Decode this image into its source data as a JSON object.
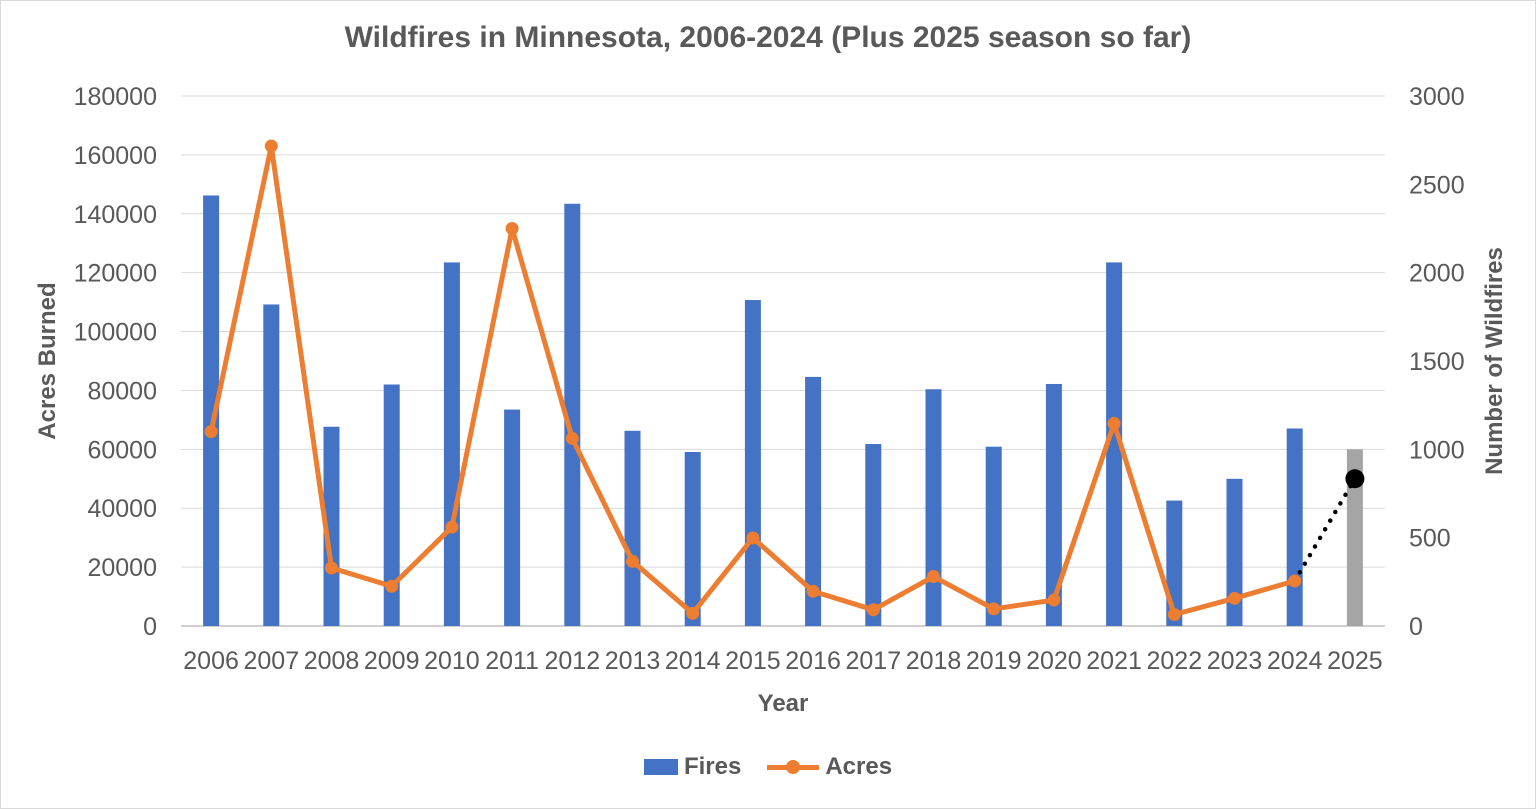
{
  "chart_data": {
    "type": "combo-bar-line",
    "title": "Wildfires in Minnesota, 2006-2024 (Plus 2025 season so far)",
    "xlabel": "Year",
    "grid": true,
    "legend_position": "bottom",
    "colors": {
      "text": "#595959",
      "gridline": "#D9D9D9",
      "axis_line": "#BFBFBF",
      "bar_blue": "#4472C4",
      "bar_gray_2025": "#A5A5A5",
      "line_orange": "#ED7D31",
      "projection_black": "#000000"
    },
    "left_axis": {
      "label": "Acres Burned",
      "min": 0,
      "max": 180000,
      "step": 20000,
      "ticks": [
        "0",
        "20000",
        "40000",
        "60000",
        "80000",
        "100000",
        "120000",
        "140000",
        "160000",
        "180000"
      ]
    },
    "right_axis": {
      "label": "Number of Wildfires",
      "min": 0,
      "max": 3000,
      "step": 500,
      "ticks": [
        "0",
        "500",
        "1000",
        "1500",
        "2000",
        "2500",
        "3000"
      ]
    },
    "categories": [
      "2006",
      "2007",
      "2008",
      "2009",
      "2010",
      "2011",
      "2012",
      "2013",
      "2014",
      "2015",
      "2016",
      "2017",
      "2018",
      "2019",
      "2020",
      "2021",
      "2022",
      "2023",
      "2024",
      "2025"
    ],
    "series": [
      {
        "name": "Fires",
        "type": "bar",
        "axis": "right",
        "color": "#4472C4",
        "partial_bar_index": 19,
        "partial_bar_color": "#A5A5A5",
        "values": [
          2437,
          1820,
          1128,
          1367,
          2058,
          1225,
          2390,
          1105,
          985,
          1845,
          1410,
          1030,
          1340,
          1015,
          1370,
          2058,
          710,
          833,
          1118,
          1000
        ]
      },
      {
        "name": "Acres",
        "type": "line",
        "axis": "left",
        "color": "#ED7D31",
        "values": [
          66000,
          163000,
          19700,
          13500,
          33600,
          135000,
          63700,
          22000,
          4300,
          29900,
          11800,
          5500,
          16800,
          5800,
          8800,
          68800,
          3900,
          9400,
          15300,
          null
        ]
      }
    ],
    "projection": {
      "name": "2025 season so far (projection connector)",
      "type": "dotted-line",
      "axis": "left",
      "color": "#000000",
      "from_category": "2024",
      "from_index": 18,
      "from_value": 15300,
      "to_category": "2025",
      "to_index": 19,
      "to_value": 50000
    }
  }
}
